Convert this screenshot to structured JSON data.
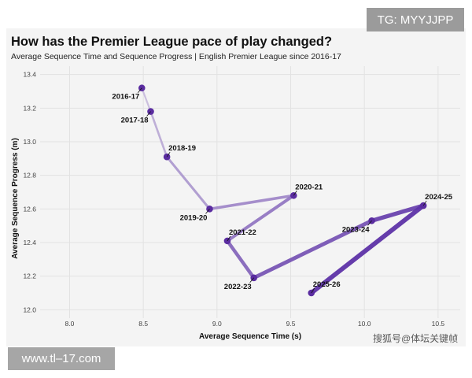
{
  "title": "How has the Premier League pace of play changed?",
  "subtitle": "Average Sequence Time and Sequence Progress | English Premier League since 2016-17",
  "overlay": {
    "tg_badge": "TG: MYYJJPP",
    "site_badge": "www.tl–17.com",
    "watermark": "搜狐号@体坛关键帧"
  },
  "colors": {
    "point": "#5a2ca0",
    "line_light": "#c8bcdc",
    "line_dark": "#6a3fb0",
    "grid": "#e2e2e2",
    "card_bg": "#f4f4f4"
  },
  "chart_data": {
    "type": "scatter",
    "title": "How has the Premier League pace of play changed?",
    "xlabel": "Average Sequence Time (s)",
    "ylabel": "Average Sequence Progress (m)",
    "xlim": [
      7.8,
      10.65
    ],
    "ylim": [
      11.95,
      13.45
    ],
    "xticks": [
      "8.0",
      "8.5",
      "9.0",
      "9.5",
      "10.0",
      "10.5"
    ],
    "yticks": [
      "12.0",
      "12.2",
      "12.4",
      "12.6",
      "12.8",
      "13.0",
      "13.2",
      "13.4"
    ],
    "grid": true,
    "connected": true,
    "points": [
      {
        "label": "2016-17",
        "x": 8.49,
        "y": 13.32,
        "label_pos": "below-left"
      },
      {
        "label": "2017-18",
        "x": 8.55,
        "y": 13.18,
        "label_pos": "below-left"
      },
      {
        "label": "2018-19",
        "x": 8.66,
        "y": 12.91,
        "label_pos": "above-right"
      },
      {
        "label": "2019-20",
        "x": 8.95,
        "y": 12.6,
        "label_pos": "below-left"
      },
      {
        "label": "2020-21",
        "x": 9.52,
        "y": 12.68,
        "label_pos": "above-right"
      },
      {
        "label": "2021-22",
        "x": 9.07,
        "y": 12.41,
        "label_pos": "above-right"
      },
      {
        "label": "2022-23",
        "x": 9.25,
        "y": 12.19,
        "label_pos": "below-left"
      },
      {
        "label": "2023-24",
        "x": 10.05,
        "y": 12.53,
        "label_pos": "below-left"
      },
      {
        "label": "2024-25",
        "x": 10.4,
        "y": 12.62,
        "label_pos": "above-right"
      },
      {
        "label": "2025-26",
        "x": 9.64,
        "y": 12.1,
        "label_pos": "above-right"
      }
    ]
  }
}
